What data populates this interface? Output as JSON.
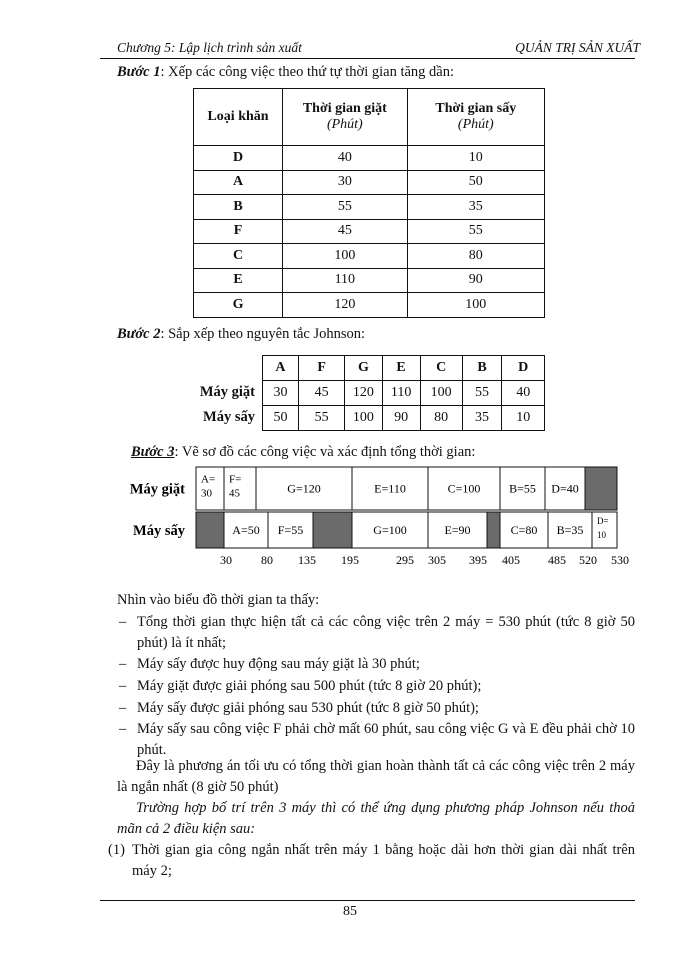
{
  "header": {
    "left": "Chương 5: Lập lịch trình sản xuất",
    "right": "QUẢN TRỊ SẢN XUẤT"
  },
  "step1": {
    "label": "Bước 1",
    "text": ": Xếp các công việc theo thứ tự thời gian tăng dần:"
  },
  "table1": {
    "header": [
      {
        "title": "Loại khăn"
      },
      {
        "title": "Thời gian giặt",
        "unit": "(Phút)"
      },
      {
        "title": "Thời gian sấy",
        "unit": "(Phút)"
      }
    ],
    "rows": [
      [
        "D",
        40,
        10
      ],
      [
        "A",
        30,
        50
      ],
      [
        "B",
        55,
        35
      ],
      [
        "F",
        45,
        55
      ],
      [
        "C",
        100,
        80
      ],
      [
        "E",
        110,
        90
      ],
      [
        "G",
        120,
        100
      ]
    ]
  },
  "step2": {
    "label": "Bước 2",
    "text": ": Sắp xếp theo nguyên tắc Johnson:"
  },
  "table2": {
    "header": [
      "A",
      "F",
      "G",
      "E",
      "C",
      "B",
      "D"
    ],
    "rows": [
      {
        "label": "Máy giặt",
        "values": [
          30,
          45,
          120,
          110,
          100,
          55,
          40
        ]
      },
      {
        "label": "Máy sấy",
        "values": [
          50,
          55,
          100,
          90,
          80,
          35,
          10
        ]
      }
    ]
  },
  "step3": {
    "label": "Bước 3",
    "text": ": Vẽ sơ đồ các công việc và xác định tổng thời gian:"
  },
  "gantt": {
    "rows": [
      {
        "label": "Máy giặt",
        "blocks": [
          [
            "A=",
            "30"
          ],
          [
            "F=",
            "45"
          ],
          [
            "G=120"
          ],
          [
            "E=110"
          ],
          [
            "C=100"
          ],
          [
            "B=55"
          ],
          [
            "D=40"
          ]
        ]
      },
      {
        "label": "Máy sấy",
        "blocks": [
          [
            "A=50"
          ],
          [
            "F=55"
          ],
          [
            "G=100"
          ],
          [
            "E=90"
          ],
          [
            "C=80"
          ],
          [
            "B=35"
          ],
          [
            "D=",
            "10"
          ]
        ]
      }
    ],
    "axis": [
      30,
      80,
      135,
      195,
      295,
      305,
      395,
      405,
      485,
      520,
      530
    ]
  },
  "intro": "Nhìn vào biểu đồ thời gian ta thấy:",
  "bullets": [
    "Tổng thời gian thực hiện tất cả các công việc trên 2 máy = 530 phút (tức 8 giờ 50 phút) là ít nhất;",
    "Máy sấy được huy động sau máy giặt là 30 phút;",
    "Máy giặt được giải phóng sau 500 phút (tức 8 giờ 20 phút);",
    "Máy sấy được giải phóng sau 530 phút (tức 8 giờ 50 phút);",
    "Máy sấy sau công việc F phải chờ mất 60 phút, sau công việc G và E đều phải chờ 10 phút."
  ],
  "conclusion": "Đây là phương án tối ưu có tổng thời gian hoàn thành tất cả các công việc trên 2 máy là ngắn nhất (8 giờ 50 phút)",
  "case3": "Trường hợp bố trí trên 3 máy thì có thể ứng dụng phương pháp Johnson nếu thoả mãn cả 2 điều kiện sau:",
  "condition1": {
    "number": "(1)",
    "text": "Thời gian gia công ngắn nhất trên máy 1 bằng hoặc dài hơn thời gian dài nhất trên máy 2;"
  },
  "footer": {
    "page": "85"
  }
}
